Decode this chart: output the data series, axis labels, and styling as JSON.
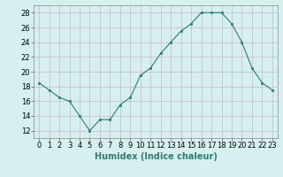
{
  "x": [
    0,
    1,
    2,
    3,
    4,
    5,
    6,
    7,
    8,
    9,
    10,
    11,
    12,
    13,
    14,
    15,
    16,
    17,
    18,
    19,
    20,
    21,
    22,
    23
  ],
  "y": [
    18.5,
    17.5,
    16.5,
    16.0,
    14.0,
    12.0,
    13.5,
    13.5,
    15.5,
    16.5,
    19.5,
    20.5,
    22.5,
    24.0,
    25.5,
    26.5,
    28.0,
    28.0,
    28.0,
    26.5,
    24.0,
    20.5,
    18.5,
    17.5
  ],
  "line_color": "#2e7d6e",
  "marker": "s",
  "marker_size": 2,
  "bg_color": "#d6f0ef",
  "grid_color_major": "#c8b8c8",
  "grid_color_minor": "#ffffff",
  "xlabel": "Humidex (Indice chaleur)",
  "xlim": [
    -0.5,
    23.5
  ],
  "ylim": [
    11,
    29
  ],
  "yticks": [
    12,
    14,
    16,
    18,
    20,
    22,
    24,
    26,
    28
  ],
  "xticks": [
    0,
    1,
    2,
    3,
    4,
    5,
    6,
    7,
    8,
    9,
    10,
    11,
    12,
    13,
    14,
    15,
    16,
    17,
    18,
    19,
    20,
    21,
    22,
    23
  ],
  "label_color": "#2e7d6e",
  "label_fontsize": 7,
  "tick_fontsize": 6
}
